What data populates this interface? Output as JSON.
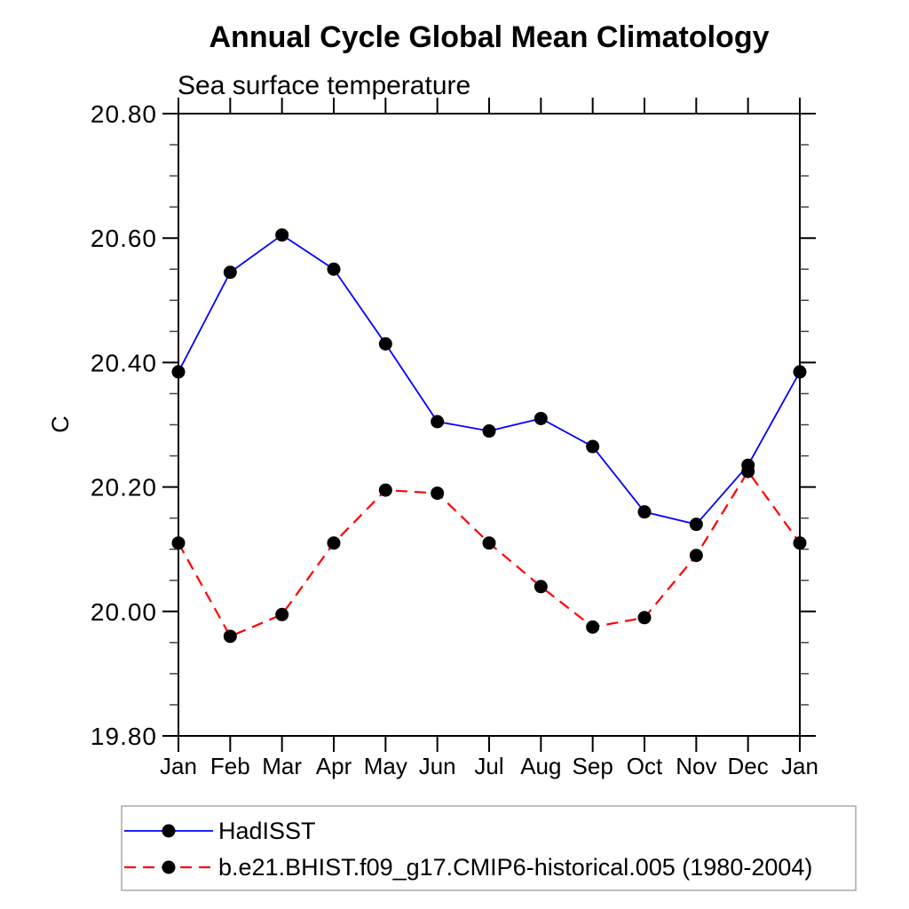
{
  "chart_data": {
    "type": "line",
    "title": "Annual Cycle Global Mean Climatology",
    "subtitle": "Sea surface temperature",
    "ylabel": "C",
    "xlabel": "",
    "categories": [
      "Jan",
      "Feb",
      "Mar",
      "Apr",
      "May",
      "Jun",
      "Jul",
      "Aug",
      "Sep",
      "Oct",
      "Nov",
      "Dec",
      "Jan"
    ],
    "ylim": [
      19.8,
      20.8
    ],
    "ytick_interval": 0.2,
    "yminor_interval": 0.05,
    "ytick_labels": [
      "19.80",
      "20.00",
      "20.20",
      "20.40",
      "20.60",
      "20.80"
    ],
    "grid": false,
    "legend_position": "bottom-left",
    "marker": "filled-circle",
    "marker_color": "#000000",
    "series": [
      {
        "name": "HadISST",
        "color": "#0000ff",
        "style": "solid",
        "values": [
          20.385,
          20.545,
          20.605,
          20.55,
          20.43,
          20.305,
          20.29,
          20.31,
          20.265,
          20.16,
          20.14,
          20.235,
          20.385
        ]
      },
      {
        "name": "b.e21.BHIST.f09_g17.CMIP6-historical.005 (1980-2004)",
        "color": "#ff0000",
        "style": "dashed",
        "values": [
          20.11,
          19.96,
          19.995,
          20.11,
          20.195,
          20.19,
          20.11,
          20.04,
          19.975,
          19.99,
          20.09,
          20.225,
          20.11
        ]
      }
    ]
  },
  "colors": {
    "axis": "#000000",
    "minor_tick": "#444444",
    "legend_border": "#aaaaaa",
    "background": "#ffffff"
  }
}
